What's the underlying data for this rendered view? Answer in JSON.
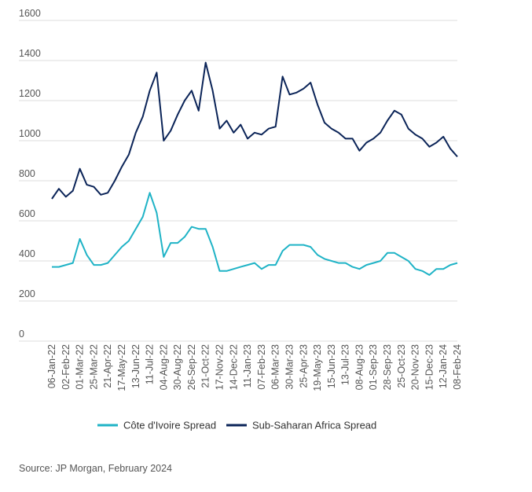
{
  "chart_data": {
    "type": "line",
    "categories": [
      "06-Jan-22",
      null,
      "02-Feb-22",
      null,
      "01-Mar-22",
      null,
      "25-Mar-22",
      null,
      "21-Apr-22",
      null,
      "17-May-22",
      null,
      "13-Jun-22",
      null,
      "11-Jul-22",
      null,
      "04-Aug-22",
      null,
      "30-Aug-22",
      null,
      "26-Sep-22",
      null,
      "21-Oct-22",
      null,
      "17-Nov-22",
      null,
      "14-Dec-22",
      null,
      "11-Jan-23",
      null,
      "07-Feb-23",
      null,
      "06-Mar-23",
      null,
      "30-Mar-23",
      null,
      "25-Apr-23",
      null,
      "19-May-23",
      null,
      "15-Jun-23",
      null,
      "13-Jul-23",
      null,
      "08-Aug-23",
      null,
      "01-Sep-23",
      null,
      "28-Sep-23",
      null,
      "25-Oct-23",
      null,
      "20-Nov-23",
      null,
      "15-Dec-23",
      null,
      "12-Jan-24",
      null,
      "08-Feb-24"
    ],
    "series": [
      {
        "name": "Côte d'Ivoire Spread",
        "color": "#1fb3c6",
        "values": [
          370,
          370,
          380,
          390,
          510,
          430,
          380,
          380,
          390,
          430,
          470,
          500,
          560,
          620,
          740,
          640,
          420,
          490,
          490,
          520,
          570,
          560,
          560,
          470,
          350,
          350,
          360,
          370,
          380,
          390,
          360,
          380,
          380,
          450,
          480,
          480,
          480,
          470,
          430,
          410,
          400,
          390,
          390,
          370,
          360,
          380,
          390,
          400,
          440,
          440,
          420,
          400,
          360,
          350,
          330,
          360,
          360,
          380,
          390
        ]
      },
      {
        "name": "Sub-Saharan Africa Spread",
        "color": "#0b2458",
        "values": [
          710,
          760,
          720,
          750,
          860,
          780,
          770,
          730,
          740,
          800,
          870,
          930,
          1040,
          1120,
          1250,
          1340,
          1000,
          1050,
          1130,
          1200,
          1250,
          1150,
          1390,
          1250,
          1060,
          1100,
          1040,
          1080,
          1010,
          1040,
          1030,
          1060,
          1070,
          1320,
          1230,
          1240,
          1260,
          1290,
          1180,
          1090,
          1060,
          1040,
          1010,
          1010,
          950,
          990,
          1010,
          1040,
          1100,
          1150,
          1130,
          1060,
          1030,
          1010,
          970,
          990,
          1020,
          960,
          920
        ]
      }
    ],
    "ylim": [
      0,
      1600
    ],
    "yticks": [
      0,
      200,
      400,
      600,
      800,
      1000,
      1200,
      1400,
      1600
    ],
    "grid": true,
    "legend": "bottom",
    "source": "Source: JP Morgan, February 2024"
  }
}
